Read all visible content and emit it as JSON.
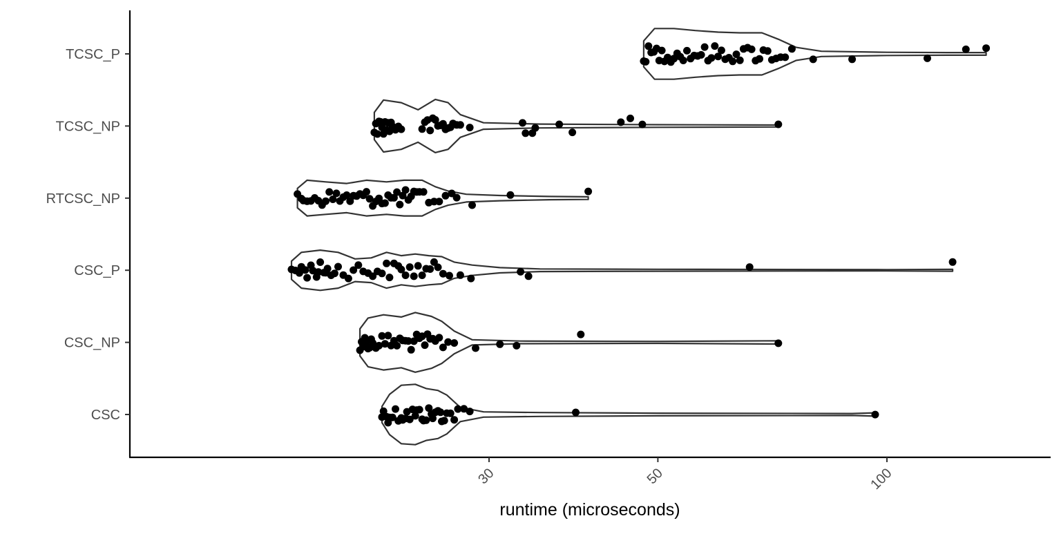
{
  "chart_data": {
    "type": "violin",
    "orientation": "horizontal",
    "xlabel": "runtime (microseconds)",
    "ylabel": "",
    "x_scale": "log10",
    "x_ticks": [
      30,
      50,
      100
    ],
    "x_tick_labels": [
      "30",
      "50",
      "100"
    ],
    "xlim": [
      16.5,
      135
    ],
    "grid": false,
    "legend": "none",
    "colors": {
      "outline": "#333333",
      "points": "#000000",
      "axis": "#000000",
      "tick_text": "#4d4d4d"
    },
    "categories": [
      "CSC",
      "CSC_NP",
      "CSC_P",
      "RTCSC_NP",
      "TCSC_NP",
      "TCSC_P"
    ],
    "series": [
      {
        "category": "CSC",
        "min": 21.7,
        "max": 96.5,
        "density": [
          [
            21.7,
            0.25
          ],
          [
            22.2,
            0.62
          ],
          [
            23.0,
            0.9
          ],
          [
            24.0,
            0.93
          ],
          [
            24.8,
            0.8
          ],
          [
            25.7,
            0.74
          ],
          [
            26.4,
            0.6
          ],
          [
            27.5,
            0.22
          ],
          [
            29.5,
            0.08
          ],
          [
            35,
            0.06
          ],
          [
            50,
            0.04
          ],
          [
            90,
            0.03
          ],
          [
            96.5,
            0.05
          ]
        ],
        "points": [
          21.7,
          21.8,
          22.0,
          22.1,
          22.2,
          22.4,
          22.6,
          22.8,
          23.0,
          23.1,
          23.3,
          23.4,
          23.6,
          23.8,
          24.0,
          24.1,
          24.3,
          24.5,
          24.6,
          24.8,
          25.0,
          25.2,
          25.3,
          25.5,
          25.7,
          25.9,
          26.0,
          26.2,
          26.4,
          26.7,
          27.0,
          27.3,
          27.8,
          28.3,
          39.0,
          96.5
        ]
      },
      {
        "category": "CSC_NP",
        "min": 20.3,
        "max": 72.0,
        "density": [
          [
            20.3,
            0.42
          ],
          [
            20.8,
            0.75
          ],
          [
            21.8,
            0.85
          ],
          [
            23.0,
            0.78
          ],
          [
            24.0,
            0.92
          ],
          [
            25.2,
            0.8
          ],
          [
            26.0,
            0.65
          ],
          [
            27.0,
            0.35
          ],
          [
            28.5,
            0.08
          ],
          [
            33,
            0.04
          ],
          [
            50,
            0.03
          ],
          [
            72,
            0.05
          ]
        ],
        "points": [
          20.3,
          20.4,
          20.5,
          20.6,
          20.7,
          20.8,
          20.9,
          21.0,
          21.1,
          21.3,
          21.5,
          21.7,
          21.9,
          22.1,
          22.3,
          22.5,
          22.7,
          22.9,
          23.1,
          23.3,
          23.5,
          23.7,
          23.9,
          24.1,
          24.3,
          24.5,
          24.7,
          24.9,
          25.1,
          25.3,
          25.5,
          25.8,
          26.1,
          26.5,
          27.0,
          28.8,
          31.0,
          32.6,
          39.6,
          72.0
        ]
      },
      {
        "category": "CSC_P",
        "min": 16.5,
        "max": 122.0,
        "density": [
          [
            16.5,
            0.28
          ],
          [
            17.0,
            0.55
          ],
          [
            18.0,
            0.62
          ],
          [
            19.0,
            0.55
          ],
          [
            20.0,
            0.35
          ],
          [
            21.0,
            0.38
          ],
          [
            22.0,
            0.55
          ],
          [
            23.0,
            0.45
          ],
          [
            24.0,
            0.5
          ],
          [
            25.0,
            0.45
          ],
          [
            26.0,
            0.42
          ],
          [
            27.0,
            0.25
          ],
          [
            28.5,
            0.16
          ],
          [
            31,
            0.08
          ],
          [
            35,
            0.04
          ],
          [
            50,
            0.03
          ],
          [
            100,
            0.02
          ],
          [
            122,
            0.03
          ]
        ],
        "points": [
          16.5,
          16.7,
          16.9,
          17.0,
          17.2,
          17.3,
          17.5,
          17.6,
          17.8,
          17.9,
          18.0,
          18.2,
          18.3,
          18.4,
          18.6,
          18.8,
          19.0,
          19.3,
          19.6,
          19.9,
          20.2,
          20.5,
          20.8,
          21.1,
          21.4,
          21.7,
          22.0,
          22.2,
          22.5,
          22.8,
          23.0,
          23.3,
          23.6,
          23.9,
          24.2,
          24.5,
          24.8,
          25.1,
          25.4,
          25.7,
          26.1,
          26.6,
          27.5,
          28.4,
          33.0,
          33.8,
          66.0,
          122.0
        ]
      },
      {
        "category": "RTCSC_NP",
        "min": 16.8,
        "max": 40.5,
        "density": [
          [
            16.8,
            0.3
          ],
          [
            17.3,
            0.55
          ],
          [
            18.3,
            0.5
          ],
          [
            19.5,
            0.45
          ],
          [
            20.7,
            0.55
          ],
          [
            22.0,
            0.5
          ],
          [
            23.2,
            0.55
          ],
          [
            24.5,
            0.55
          ],
          [
            25.5,
            0.35
          ],
          [
            26.5,
            0.22
          ],
          [
            28,
            0.12
          ],
          [
            31,
            0.08
          ],
          [
            36,
            0.05
          ],
          [
            40.5,
            0.04
          ]
        ],
        "points": [
          16.8,
          17.0,
          17.1,
          17.3,
          17.5,
          17.7,
          17.9,
          18.1,
          18.3,
          18.5,
          18.7,
          18.9,
          19.1,
          19.3,
          19.5,
          19.7,
          19.9,
          20.1,
          20.3,
          20.5,
          20.7,
          20.9,
          21.1,
          21.3,
          21.5,
          21.7,
          21.9,
          22.1,
          22.3,
          22.5,
          22.7,
          22.9,
          23.1,
          23.3,
          23.5,
          23.7,
          23.9,
          24.1,
          24.3,
          24.6,
          25.0,
          25.4,
          25.8,
          26.3,
          26.8,
          27.2,
          28.5,
          32.0,
          40.5
        ]
      },
      {
        "category": "TCSC_NP",
        "min": 21.2,
        "max": 72.0,
        "density": [
          [
            21.2,
            0.42
          ],
          [
            21.8,
            0.8
          ],
          [
            23.0,
            0.72
          ],
          [
            24.2,
            0.5
          ],
          [
            25.5,
            0.82
          ],
          [
            26.5,
            0.72
          ],
          [
            27.5,
            0.35
          ],
          [
            29.5,
            0.1
          ],
          [
            35,
            0.06
          ],
          [
            50,
            0.04
          ],
          [
            72,
            0.03
          ]
        ],
        "points": [
          21.2,
          21.3,
          21.4,
          21.5,
          21.6,
          21.7,
          21.8,
          21.9,
          22.0,
          22.1,
          22.2,
          22.3,
          22.4,
          22.6,
          22.8,
          23.0,
          24.5,
          24.7,
          24.9,
          25.1,
          25.3,
          25.5,
          25.7,
          25.9,
          26.1,
          26.3,
          26.5,
          26.7,
          26.9,
          27.2,
          27.5,
          28.3,
          33.2,
          33.5,
          34.2,
          34.5,
          37.1,
          38.6,
          44.7,
          46.0,
          47.7,
          72.0
        ]
      },
      {
        "category": "TCSC_P",
        "min": 47.9,
        "max": 135.0,
        "density": [
          [
            47.9,
            0.4
          ],
          [
            49.5,
            0.78
          ],
          [
            52.5,
            0.78
          ],
          [
            56.0,
            0.72
          ],
          [
            60.0,
            0.67
          ],
          [
            64.0,
            0.65
          ],
          [
            68.5,
            0.65
          ],
          [
            72.0,
            0.45
          ],
          [
            76.0,
            0.2
          ],
          [
            82,
            0.08
          ],
          [
            100,
            0.05
          ],
          [
            120,
            0.04
          ],
          [
            135,
            0.04
          ]
        ],
        "points": [
          47.9,
          48.2,
          48.6,
          49.0,
          49.4,
          49.8,
          50.2,
          50.6,
          51.0,
          51.5,
          52.0,
          52.5,
          53.0,
          53.5,
          54.0,
          54.6,
          55.2,
          55.8,
          56.4,
          57.0,
          57.6,
          58.2,
          58.8,
          59.4,
          60.0,
          60.6,
          61.3,
          62.0,
          62.7,
          63.4,
          64.1,
          64.8,
          65.6,
          66.4,
          67.2,
          68.0,
          68.8,
          69.7,
          70.6,
          71.5,
          72.5,
          73.5,
          75.0,
          80.0,
          90.0,
          113.0,
          127.0,
          135.0
        ]
      }
    ]
  }
}
